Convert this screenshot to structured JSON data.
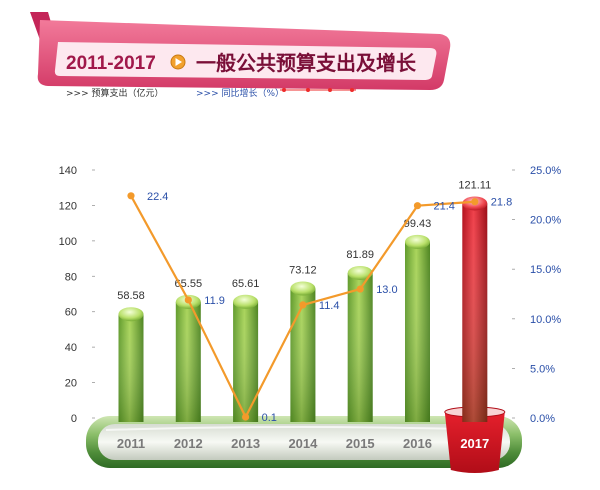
{
  "header": {
    "year_range": "2011-2017",
    "title": "一般公共预算支出及增长",
    "banner_color": "#e8557f",
    "year_range_color": "#a0184a",
    "play_icon": "play-circle-icon"
  },
  "legend": {
    "bar_label": ">>> 预算支出（亿元）",
    "line_label": ">>> 同比增长（%）",
    "line_color": "#ee2b2b"
  },
  "chart_data": {
    "type": "bar",
    "categories": [
      "2011",
      "2012",
      "2013",
      "2014",
      "2015",
      "2016",
      "2017"
    ],
    "series": [
      {
        "type": "bar",
        "values": [
          58.58,
          65.55,
          65.61,
          73.12,
          81.89,
          99.43,
          121.11
        ],
        "value_labels": [
          "58.58",
          "65.55",
          "65.61",
          "73.12",
          "81.89",
          "99.43",
          "121.11"
        ],
        "color": "#7fb83a",
        "highlight_color": "#d9182a"
      },
      {
        "type": "line",
        "values": [
          22.4,
          11.9,
          0.1,
          11.4,
          13.0,
          21.4,
          21.8
        ],
        "value_labels": [
          "22.4",
          "11.9",
          "0.1",
          "11.4",
          "13.0",
          "21.4",
          "21.8"
        ],
        "color": "#f39a2b",
        "label_color": "#2a4fa8"
      }
    ],
    "y_left": {
      "min": 0,
      "max": 140,
      "ticks": [
        "0",
        "20",
        "40",
        "60",
        "80",
        "100",
        "120",
        "140"
      ]
    },
    "y_right": {
      "min": 0,
      "max": 25,
      "ticks": [
        "0.0%",
        "5.0%",
        "10.0%",
        "15.0%",
        "20.0%",
        "25.0%"
      ],
      "color": "#2a4fa8"
    },
    "highlight_category": "2017",
    "grid": false
  }
}
